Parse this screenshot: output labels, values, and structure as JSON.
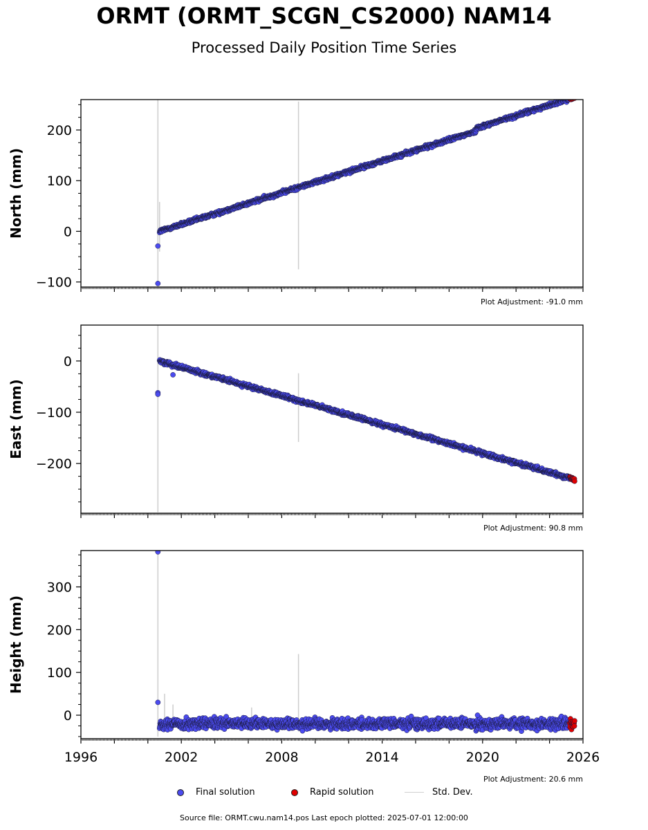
{
  "header": {
    "title": "ORMT (ORMT_SCGN_CS2000) NAM14",
    "subtitle": "Processed Daily Position Time Series"
  },
  "legend": {
    "final": "Final solution",
    "rapid": "Rapid solution",
    "std": "Std. Dev."
  },
  "footer": {
    "source": "Source file: ORMT.cwu.nam14.pos  Last epoch plotted: 2025-07-01 12:00:00"
  },
  "colors": {
    "final": "#4b4bef",
    "rapid": "#e00000",
    "std_dev": "#cccccc",
    "marker_edge": "#1a1a3a"
  },
  "chart_data": [
    {
      "type": "scatter",
      "ylabel": "North (mm)",
      "adjustment": "Plot Adjustment: -91.0 mm",
      "xlim": [
        1996,
        2026
      ],
      "ylim": [
        -110,
        260
      ],
      "yticks": [
        -100,
        0,
        100,
        200
      ],
      "ytick_labels": [
        "−100",
        "0",
        "100",
        "200"
      ],
      "trend": {
        "x": [
          2000.7,
          2025.5
        ],
        "y": [
          0,
          259
        ]
      },
      "steps": [
        {
          "x": 2019.6,
          "dy": 6
        }
      ],
      "noise_mm": 2.5,
      "outliers": [
        [
          2000.6,
          -29
        ],
        [
          2000.6,
          -103
        ]
      ],
      "std_bars": [
        [
          2000.6,
          -105,
          260
        ],
        [
          2000.7,
          -40,
          58
        ],
        [
          2009.0,
          -75,
          256
        ]
      ],
      "rapid_start": 2025.2
    },
    {
      "type": "scatter",
      "ylabel": "East (mm)",
      "adjustment": "Plot Adjustment: 90.8 mm",
      "xlim": [
        1996,
        2026
      ],
      "ylim": [
        -297,
        70
      ],
      "yticks": [
        -200,
        -100,
        0
      ],
      "ytick_labels": [
        "−200",
        "−100",
        "0"
      ],
      "trend": {
        "x": [
          2000.7,
          2025.5
        ],
        "y": [
          0,
          -231
        ]
      },
      "steps": [],
      "noise_mm": 2.5,
      "outliers": [
        [
          2000.6,
          -62
        ],
        [
          2000.6,
          -65
        ],
        [
          2001.5,
          -27
        ]
      ],
      "std_bars": [
        [
          2000.6,
          -295,
          70
        ],
        [
          2009.0,
          -158,
          -24
        ]
      ],
      "rapid_start": 2025.2
    },
    {
      "type": "scatter",
      "ylabel": "Height (mm)",
      "adjustment": "Plot Adjustment: 20.6 mm",
      "xlim": [
        1996,
        2026
      ],
      "ylim": [
        -55,
        385
      ],
      "yticks": [
        0,
        100,
        200,
        300
      ],
      "ytick_labels": [
        "0",
        "100",
        "200",
        "300"
      ],
      "xticks": [
        1996,
        2002,
        2008,
        2014,
        2020,
        2026
      ],
      "trend": {
        "x": [
          2000.7,
          2025.5
        ],
        "y": [
          -20,
          -20
        ]
      },
      "steps": [],
      "noise_mm": 9,
      "outliers": [
        [
          2000.6,
          382
        ],
        [
          2000.6,
          30
        ],
        [
          2019.7,
          0
        ]
      ],
      "std_bars": [
        [
          2000.6,
          -50,
          382
        ],
        [
          2001.0,
          -30,
          50
        ],
        [
          2001.5,
          -25,
          25
        ],
        [
          2006.2,
          -30,
          18
        ],
        [
          2009.0,
          -38,
          143
        ]
      ],
      "rapid_start": 2025.2
    }
  ]
}
